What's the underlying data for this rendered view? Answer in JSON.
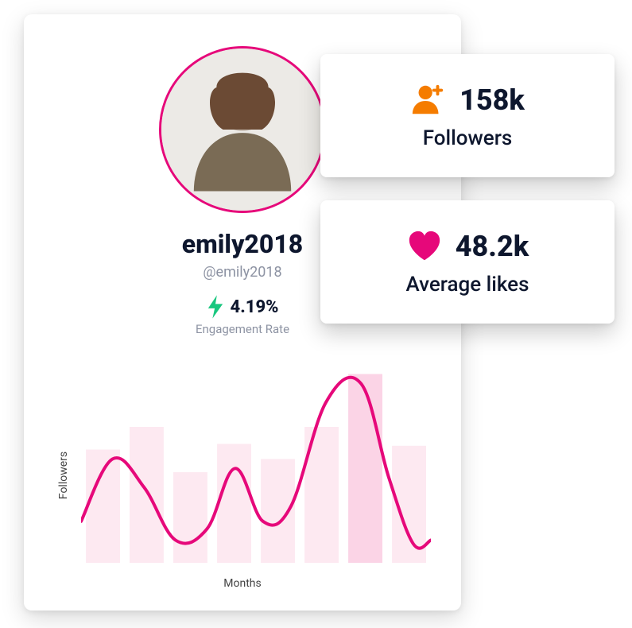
{
  "profile": {
    "display_name": "emily2018",
    "handle": "@emily2018",
    "avatar_ring_color": "#e6087a",
    "engagement": {
      "value": "4.19%",
      "label": "Engagement Rate",
      "bolt_color": "#19c77f"
    }
  },
  "stats": {
    "followers": {
      "value": "158k",
      "label": "Followers",
      "icon_color": "#f57c00"
    },
    "likes": {
      "value": "48.2k",
      "label": "Average likes",
      "icon_color": "#e6087a"
    }
  },
  "chart": {
    "type": "line-over-bar",
    "xlabel": "Months",
    "ylabel": "Followers",
    "background_color": "#ffffff",
    "bar_color": "#fde9f1",
    "bar_highlight_color": "#fbd4e6",
    "line_color": "#e6087a",
    "line_width": 4,
    "bar_width": 0.78,
    "n_bars": 8,
    "bar_heights": [
      0.6,
      0.72,
      0.48,
      0.63,
      0.55,
      0.72,
      1.0,
      0.62
    ],
    "highlight_index": 6,
    "line_points": [
      [
        0.0,
        0.22
      ],
      [
        0.09,
        0.55
      ],
      [
        0.18,
        0.4
      ],
      [
        0.27,
        0.12
      ],
      [
        0.36,
        0.18
      ],
      [
        0.44,
        0.5
      ],
      [
        0.52,
        0.22
      ],
      [
        0.6,
        0.3
      ],
      [
        0.7,
        0.85
      ],
      [
        0.8,
        0.95
      ],
      [
        0.88,
        0.45
      ],
      [
        0.95,
        0.1
      ],
      [
        1.0,
        0.12
      ]
    ]
  },
  "colors": {
    "text_dark": "#0e172e",
    "text_muted": "#8d93a3"
  }
}
